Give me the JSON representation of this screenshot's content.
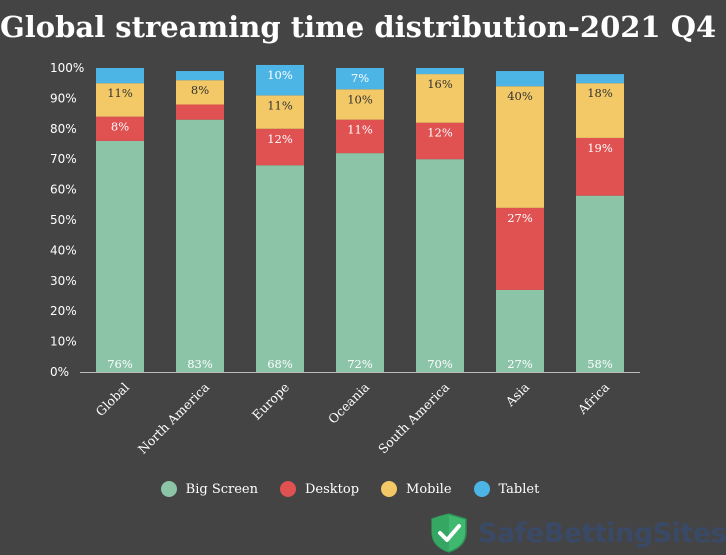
{
  "chart_data": {
    "type": "bar",
    "stacked": true,
    "title": "Global streaming time distribution-2021 Q4",
    "categories": [
      "Global",
      "North America",
      "Europe",
      "Oceania",
      "South America",
      "Asia",
      "Africa"
    ],
    "series": [
      {
        "name": "Big Screen",
        "color": "#8cc4a8",
        "values": [
          76,
          83,
          68,
          72,
          70,
          27,
          58
        ],
        "labels": [
          "76%",
          "83%",
          "68%",
          "72%",
          "70%",
          "27%",
          "58%"
        ]
      },
      {
        "name": "Desktop",
        "color": "#e05152",
        "values": [
          8,
          5,
          12,
          11,
          12,
          27,
          19
        ],
        "labels": [
          "8%",
          "",
          "12%",
          "11%",
          "12%",
          "27%",
          "19%"
        ]
      },
      {
        "name": "Mobile",
        "color": "#f2c966",
        "values": [
          11,
          8,
          11,
          10,
          16,
          40,
          18
        ],
        "labels": [
          "11%",
          "8%",
          "11%",
          "10%",
          "16%",
          "40%",
          "18%"
        ]
      },
      {
        "name": "Tablet",
        "color": "#4cb5e6",
        "values": [
          5,
          3,
          10,
          7,
          2,
          5,
          3
        ],
        "labels": [
          "",
          "",
          "10%",
          "7%",
          "",
          "",
          ""
        ]
      }
    ],
    "ylim": [
      0,
      100
    ],
    "yticks": [
      "0%",
      "10%",
      "20%",
      "30%",
      "40%",
      "50%",
      "60%",
      "70%",
      "80%",
      "90%",
      "100%"
    ],
    "legend_position": "bottom",
    "grid": false
  },
  "legend": [
    {
      "label": "Big Screen",
      "color": "#8cc4a8"
    },
    {
      "label": "Desktop",
      "color": "#e05152"
    },
    {
      "label": "Mobile",
      "color": "#f2c966"
    },
    {
      "label": "Tablet",
      "color": "#4cb5e6"
    }
  ],
  "brand": {
    "name": "SafeBettingSites",
    "icon": "shield-check-icon"
  }
}
